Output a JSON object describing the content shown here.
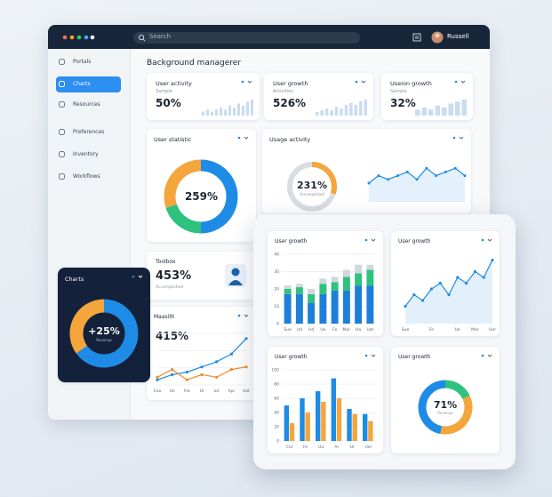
{
  "topbar": {
    "search": "Search",
    "user": "Russell"
  },
  "sidebar": {
    "items": [
      "Portals",
      "Charts",
      "Resources",
      "Preferences",
      "Inventory",
      "Workflows"
    ],
    "active": 1
  },
  "heading": "Background managerer",
  "stat_cards": [
    {
      "title": "User activity",
      "subtitle": "Sample",
      "value": "50%",
      "bars": [
        2,
        3,
        2,
        3,
        4,
        3,
        5,
        4,
        6,
        5,
        7,
        8
      ]
    },
    {
      "title": "User growth",
      "subtitle": "Activities",
      "value": "526%",
      "bars": [
        2,
        3,
        4,
        3,
        5,
        4,
        6,
        7,
        6,
        8,
        9
      ]
    },
    {
      "title": "Useion growth",
      "subtitle": "Sample",
      "value": "32%",
      "bars": [
        3,
        4,
        3,
        5,
        4,
        6,
        7,
        8
      ]
    }
  ],
  "user_statistic": {
    "title": "User statistic",
    "value": "259%",
    "segments": [
      {
        "value": 50,
        "color": "#1e8ce6"
      },
      {
        "value": 20,
        "color": "#2ec27e"
      },
      {
        "value": 30,
        "color": "#f4a53c"
      }
    ]
  },
  "usage_activity": {
    "title": "Usage activity",
    "value": "231%",
    "label": "Accomplished",
    "gauge": {
      "value": 30,
      "max": 100,
      "color": "#f4a53c"
    },
    "line": {
      "values": [
        5,
        7,
        6,
        7,
        8,
        6,
        9,
        7,
        8,
        9,
        7
      ],
      "ylim": [
        0,
        10
      ],
      "color": "#1e8ce6"
    }
  },
  "toolbox": {
    "title": "Toolbox",
    "value": "453%",
    "label": "Accomplished"
  },
  "maasith": {
    "title": "Maasith",
    "value": "415%",
    "categories": [
      "Coo",
      "Ue",
      "Fet",
      "Ul",
      "Iot",
      "Apr",
      "Uet"
    ],
    "series": [
      {
        "color": "#1e8ce6",
        "values": [
          1,
          2,
          2.5,
          3.5,
          4.5,
          6,
          9
        ]
      },
      {
        "color": "#ef8a2e",
        "values": [
          1.5,
          3,
          1,
          2,
          1.5,
          3,
          3.5
        ]
      }
    ],
    "ylim": [
      0,
      10
    ]
  },
  "dark_card": {
    "title": "Charts",
    "value": "+25%",
    "label": "Revenue",
    "segments": [
      {
        "value": 65,
        "color": "#1e8ce6"
      },
      {
        "value": 35,
        "color": "#f4a53c"
      }
    ]
  },
  "panel": {
    "cards": [
      {
        "title": "User growth",
        "type": "stacked_bar",
        "categories": [
          "Sue",
          "Ud",
          "Ud",
          "Ue",
          "Fe",
          "Mar",
          "Ha",
          "Uet"
        ],
        "series": [
          {
            "color": "#1e7fd8",
            "values": [
              17,
              17,
              12,
              17,
              19,
              19,
              22,
              22
            ]
          },
          {
            "color": "#2ec27e",
            "values": [
              3,
              4,
              5,
              6,
              5,
              8,
              7,
              9
            ]
          },
          {
            "color": "#d3d7dc",
            "values": [
              2,
              2,
              3,
              3,
              3,
              4,
              5,
              3
            ]
          }
        ],
        "ylim": [
          0,
          40
        ],
        "yticks": [
          0,
          10,
          20,
          30,
          40
        ]
      },
      {
        "title": "User growth",
        "type": "area",
        "categories": [
          "Sue",
          null,
          null,
          "Fe",
          null,
          null,
          "Ue",
          null,
          "Mar",
          null,
          "Uer"
        ],
        "values": [
          3,
          5,
          4,
          6,
          7,
          5,
          8,
          7,
          9,
          8,
          11
        ],
        "ylim": [
          0,
          12
        ],
        "color": "#1e8ce6"
      },
      {
        "title": "User growth",
        "type": "grouped_bar",
        "categories": [
          "Cor",
          "Fe",
          "Ua",
          "Ar",
          "Ur",
          "Uel"
        ],
        "series": [
          {
            "color": "#1e8ce6",
            "values": [
              50,
              60,
              70,
              88,
              45,
              38
            ]
          },
          {
            "color": "#f4a53c",
            "values": [
              25,
              40,
              55,
              60,
              38,
              28
            ]
          }
        ],
        "ylim": [
          0,
          100
        ],
        "yticks": [
          0,
          20,
          40,
          60,
          80,
          100
        ]
      },
      {
        "title": "User growth",
        "type": "donut",
        "value": "71%",
        "label": "Revenue",
        "segments": [
          {
            "value": 18,
            "color": "#2ec27e"
          },
          {
            "value": 35,
            "color": "#f4a53c"
          },
          {
            "value": 47,
            "color": "#1e8ce6"
          }
        ]
      }
    ]
  }
}
